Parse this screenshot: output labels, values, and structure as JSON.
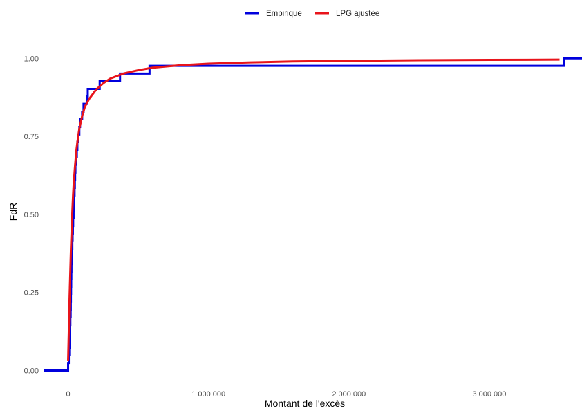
{
  "chart_data": {
    "type": "line",
    "xlabel": "Montant de l'excès",
    "ylabel": "FdR",
    "xlim": [
      -170000,
      3660000
    ],
    "ylim": [
      -0.03,
      1.045
    ],
    "x_ticks": [
      0,
      1000000,
      2000000,
      3000000
    ],
    "x_tick_labels": [
      "0",
      "1 000 000",
      "2 000 000",
      "3 000 000"
    ],
    "y_ticks": [
      0,
      0.25,
      0.5,
      0.75,
      1.0
    ],
    "y_tick_labels": [
      "0.00",
      "0.25",
      "0.50",
      "0.75",
      "1.00"
    ],
    "grid": false,
    "legend_position": "top",
    "series": [
      {
        "name": "Empirique",
        "color": "#0000dd",
        "step": true,
        "points": [
          [
            -170000,
            0
          ],
          [
            0,
            0
          ],
          [
            0,
            0.024
          ],
          [
            5000,
            0.024
          ],
          [
            5000,
            0.049
          ],
          [
            8000,
            0.049
          ],
          [
            8000,
            0.073
          ],
          [
            10000,
            0.073
          ],
          [
            10000,
            0.098
          ],
          [
            12000,
            0.098
          ],
          [
            12000,
            0.122
          ],
          [
            14000,
            0.122
          ],
          [
            14000,
            0.146
          ],
          [
            16000,
            0.146
          ],
          [
            16000,
            0.171
          ],
          [
            18000,
            0.171
          ],
          [
            18000,
            0.195
          ],
          [
            19000,
            0.195
          ],
          [
            19000,
            0.22
          ],
          [
            20000,
            0.22
          ],
          [
            20000,
            0.244
          ],
          [
            21000,
            0.244
          ],
          [
            21000,
            0.268
          ],
          [
            22000,
            0.268
          ],
          [
            22000,
            0.293
          ],
          [
            23000,
            0.293
          ],
          [
            23000,
            0.317
          ],
          [
            24000,
            0.317
          ],
          [
            24000,
            0.341
          ],
          [
            25000,
            0.341
          ],
          [
            25000,
            0.366
          ],
          [
            27000,
            0.366
          ],
          [
            27000,
            0.39
          ],
          [
            30000,
            0.39
          ],
          [
            30000,
            0.415
          ],
          [
            32000,
            0.415
          ],
          [
            32000,
            0.439
          ],
          [
            34000,
            0.439
          ],
          [
            34000,
            0.463
          ],
          [
            36000,
            0.463
          ],
          [
            36000,
            0.488
          ],
          [
            39000,
            0.488
          ],
          [
            39000,
            0.512
          ],
          [
            41000,
            0.512
          ],
          [
            41000,
            0.537
          ],
          [
            43000,
            0.537
          ],
          [
            43000,
            0.561
          ],
          [
            46000,
            0.561
          ],
          [
            46000,
            0.585
          ],
          [
            48000,
            0.585
          ],
          [
            48000,
            0.61
          ],
          [
            50000,
            0.61
          ],
          [
            50000,
            0.634
          ],
          [
            52000,
            0.634
          ],
          [
            52000,
            0.659
          ],
          [
            58000,
            0.659
          ],
          [
            58000,
            0.683
          ],
          [
            62000,
            0.683
          ],
          [
            62000,
            0.707
          ],
          [
            66000,
            0.707
          ],
          [
            66000,
            0.732
          ],
          [
            70000,
            0.732
          ],
          [
            70000,
            0.756
          ],
          [
            80000,
            0.756
          ],
          [
            80000,
            0.78
          ],
          [
            85000,
            0.78
          ],
          [
            85000,
            0.805
          ],
          [
            100000,
            0.805
          ],
          [
            100000,
            0.829
          ],
          [
            110000,
            0.829
          ],
          [
            110000,
            0.854
          ],
          [
            135000,
            0.854
          ],
          [
            135000,
            0.878
          ],
          [
            140000,
            0.878
          ],
          [
            140000,
            0.902
          ],
          [
            225000,
            0.902
          ],
          [
            225000,
            0.927
          ],
          [
            370000,
            0.927
          ],
          [
            370000,
            0.951
          ],
          [
            580000,
            0.951
          ],
          [
            580000,
            0.976
          ],
          [
            3530000,
            0.976
          ],
          [
            3530000,
            1.0
          ],
          [
            3660000,
            1.0
          ]
        ]
      },
      {
        "name": "LPG ajustée",
        "color": "#e8141b",
        "step": false,
        "points": [
          [
            0,
            0.03
          ],
          [
            5000,
            0.13
          ],
          [
            10000,
            0.23
          ],
          [
            15000,
            0.31
          ],
          [
            20000,
            0.39
          ],
          [
            25000,
            0.45
          ],
          [
            30000,
            0.51
          ],
          [
            35000,
            0.56
          ],
          [
            40000,
            0.6
          ],
          [
            50000,
            0.66
          ],
          [
            60000,
            0.71
          ],
          [
            70000,
            0.745
          ],
          [
            80000,
            0.775
          ],
          [
            100000,
            0.815
          ],
          [
            120000,
            0.845
          ],
          [
            150000,
            0.87
          ],
          [
            200000,
            0.9
          ],
          [
            250000,
            0.92
          ],
          [
            300000,
            0.935
          ],
          [
            400000,
            0.952
          ],
          [
            500000,
            0.962
          ],
          [
            600000,
            0.97
          ],
          [
            800000,
            0.978
          ],
          [
            1000000,
            0.983
          ],
          [
            1300000,
            0.987
          ],
          [
            1600000,
            0.99
          ],
          [
            2000000,
            0.992
          ],
          [
            2500000,
            0.994
          ],
          [
            3000000,
            0.995
          ],
          [
            3500000,
            0.996
          ]
        ]
      }
    ]
  }
}
